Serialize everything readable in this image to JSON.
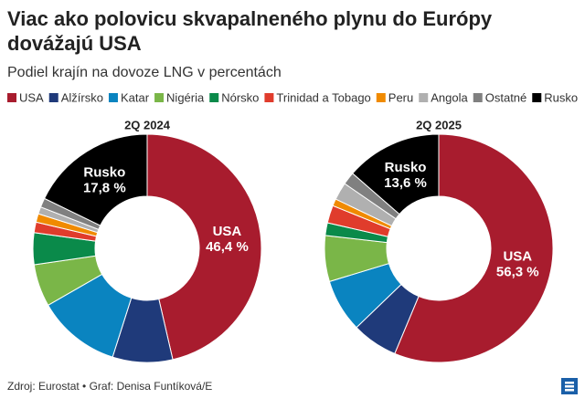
{
  "title": "Viac ako polovicu skvapalneného plynu do Európy dovážajú USA",
  "title_lines": [
    "Viac ako polovicu skvapalneného plynu do Európy",
    "dovážajú USA"
  ],
  "subtitle": "Podiel krajín na dovoze LNG v percentách",
  "source": "Zdroj: Eurostat • Graf: Denisa Funtíková/E",
  "chart_data": [
    {
      "type": "pie",
      "donut": true,
      "title": "2Q 2024",
      "categories": [
        "USA",
        "Alžírsko",
        "Katar",
        "Nigéria",
        "Nórsko",
        "Trinidad a Tobago",
        "Peru",
        "Angola",
        "Ostatné",
        "Rusko"
      ],
      "colors": [
        "#a81c2e",
        "#1f3a7a",
        "#0a84c0",
        "#7ab648",
        "#0a8a4a",
        "#e03c2c",
        "#f08a00",
        "#b0b0b0",
        "#808080",
        "#000000"
      ],
      "values": [
        46.4,
        8.5,
        11.8,
        6.0,
        4.5,
        1.5,
        1.2,
        1.0,
        1.3,
        17.8
      ],
      "value_labels": [
        "46,4 %",
        null,
        null,
        null,
        null,
        null,
        null,
        null,
        null,
        "17,8 %"
      ]
    },
    {
      "type": "pie",
      "donut": true,
      "title": "2Q 2025",
      "categories": [
        "USA",
        "Alžírsko",
        "Katar",
        "Nigéria",
        "Nórsko",
        "Trinidad a Tobago",
        "Peru",
        "Angola",
        "Ostatné",
        "Rusko"
      ],
      "colors": [
        "#a81c2e",
        "#1f3a7a",
        "#0a84c0",
        "#7ab648",
        "#0a8a4a",
        "#e03c2c",
        "#f08a00",
        "#b0b0b0",
        "#808080",
        "#000000"
      ],
      "values": [
        56.3,
        6.5,
        7.5,
        6.5,
        1.8,
        2.5,
        1.0,
        2.5,
        1.8,
        13.6
      ],
      "value_labels": [
        "56,3 %",
        null,
        null,
        null,
        null,
        null,
        null,
        null,
        null,
        "13,6 %"
      ]
    }
  ]
}
